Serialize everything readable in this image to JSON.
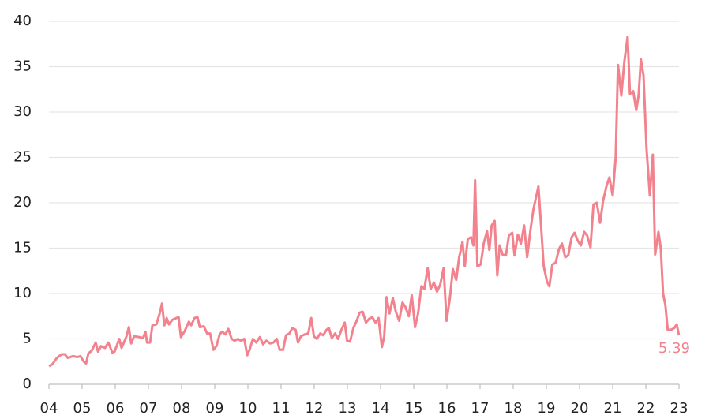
{
  "chart_data": {
    "type": "line",
    "xlim": [
      2004,
      2023
    ],
    "xticks": [
      {
        "value": 2004,
        "label": "04"
      },
      {
        "value": 2005,
        "label": "05"
      },
      {
        "value": 2006,
        "label": "06"
      },
      {
        "value": 2007,
        "label": "07"
      },
      {
        "value": 2008,
        "label": "08"
      },
      {
        "value": 2009,
        "label": "09"
      },
      {
        "value": 2010,
        "label": "10"
      },
      {
        "value": 2011,
        "label": "11"
      },
      {
        "value": 2012,
        "label": "12"
      },
      {
        "value": 2013,
        "label": "13"
      },
      {
        "value": 2014,
        "label": "14"
      },
      {
        "value": 2015,
        "label": "15"
      },
      {
        "value": 2016,
        "label": "16"
      },
      {
        "value": 2017,
        "label": "17"
      },
      {
        "value": 2018,
        "label": "18"
      },
      {
        "value": 2019,
        "label": "19"
      },
      {
        "value": 2020,
        "label": "20"
      },
      {
        "value": 2021,
        "label": "21"
      },
      {
        "value": 2022,
        "label": "22"
      },
      {
        "value": 2023,
        "label": "23"
      }
    ],
    "ylim": [
      0,
      40
    ],
    "yticks": [
      0,
      5,
      10,
      15,
      20,
      25,
      30,
      35,
      40
    ],
    "grid": true,
    "series": [
      {
        "color": "#f2838e",
        "x": [
          2004.0,
          2004.1,
          2004.24,
          2004.38,
          2004.48,
          2004.57,
          2004.72,
          2004.86,
          2004.95,
          2005.05,
          2005.12,
          2005.19,
          2005.29,
          2005.41,
          2005.48,
          2005.57,
          2005.69,
          2005.79,
          2005.91,
          2005.98,
          2006.12,
          2006.19,
          2006.34,
          2006.41,
          2006.48,
          2006.57,
          2006.72,
          2006.84,
          2006.91,
          2006.96,
          2007.05,
          2007.12,
          2007.24,
          2007.34,
          2007.41,
          2007.48,
          2007.55,
          2007.62,
          2007.72,
          2007.91,
          2007.98,
          2008.1,
          2008.22,
          2008.29,
          2008.39,
          2008.48,
          2008.55,
          2008.67,
          2008.77,
          2008.86,
          2008.96,
          2009.05,
          2009.15,
          2009.22,
          2009.32,
          2009.41,
          2009.51,
          2009.6,
          2009.7,
          2009.79,
          2009.89,
          2009.98,
          2010.05,
          2010.15,
          2010.25,
          2010.36,
          2010.46,
          2010.56,
          2010.67,
          2010.77,
          2010.87,
          2010.96,
          2011.06,
          2011.15,
          2011.25,
          2011.34,
          2011.44,
          2011.51,
          2011.6,
          2011.72,
          2011.82,
          2011.91,
          2011.99,
          2012.08,
          2012.18,
          2012.27,
          2012.37,
          2012.44,
          2012.53,
          2012.63,
          2012.72,
          2012.82,
          2012.92,
          2012.99,
          2013.08,
          2013.18,
          2013.27,
          2013.37,
          2013.46,
          2013.56,
          2013.65,
          2013.75,
          2013.85,
          2013.94,
          2014.04,
          2014.11,
          2014.18,
          2014.27,
          2014.37,
          2014.46,
          2014.56,
          2014.66,
          2014.75,
          2014.85,
          2014.94,
          2015.04,
          2015.13,
          2015.23,
          2015.32,
          2015.42,
          2015.51,
          2015.61,
          2015.7,
          2015.8,
          2015.9,
          2015.99,
          2016.09,
          2016.18,
          2016.28,
          2016.37,
          2016.47,
          2016.54,
          2016.63,
          2016.73,
          2016.8,
          2016.85,
          2016.92,
          2017.02,
          2017.11,
          2017.21,
          2017.28,
          2017.35,
          2017.44,
          2017.52,
          2017.59,
          2017.68,
          2017.78,
          2017.87,
          2017.97,
          2018.04,
          2018.14,
          2018.23,
          2018.33,
          2018.42,
          2018.52,
          2018.61,
          2018.76,
          2018.83,
          2018.92,
          2019.02,
          2019.09,
          2019.18,
          2019.28,
          2019.38,
          2019.47,
          2019.57,
          2019.66,
          2019.76,
          2019.85,
          2019.95,
          2020.04,
          2020.14,
          2020.23,
          2020.33,
          2020.42,
          2020.52,
          2020.62,
          2020.71,
          2020.81,
          2020.9,
          2021.0,
          2021.09,
          2021.16,
          2021.26,
          2021.35,
          2021.45,
          2021.52,
          2021.62,
          2021.71,
          2021.78,
          2021.85,
          2021.93,
          2022.02,
          2022.12,
          2022.21,
          2022.28,
          2022.38,
          2022.45,
          2022.52,
          2022.59,
          2022.66,
          2022.76,
          2022.86,
          2022.93,
          2023.0
        ],
        "values": [
          2.0,
          2.2,
          2.9,
          3.3,
          3.3,
          2.9,
          3.1,
          3.0,
          3.1,
          2.5,
          2.3,
          3.4,
          3.7,
          4.6,
          3.6,
          4.2,
          4.0,
          4.6,
          3.5,
          3.6,
          5.0,
          4.0,
          5.3,
          6.3,
          4.5,
          5.3,
          5.2,
          5.1,
          5.8,
          4.6,
          4.6,
          6.5,
          6.6,
          7.8,
          8.9,
          6.5,
          7.3,
          6.6,
          7.1,
          7.4,
          5.2,
          5.9,
          6.9,
          6.5,
          7.3,
          7.4,
          6.3,
          6.4,
          5.6,
          5.6,
          3.8,
          4.2,
          5.5,
          5.8,
          5.5,
          6.1,
          5.0,
          4.8,
          5.0,
          4.8,
          5.0,
          3.2,
          3.8,
          5.0,
          4.6,
          5.2,
          4.4,
          4.8,
          4.5,
          4.6,
          5.0,
          3.8,
          3.8,
          5.4,
          5.6,
          6.2,
          6.0,
          4.6,
          5.3,
          5.5,
          5.6,
          7.3,
          5.3,
          5.0,
          5.6,
          5.4,
          6.0,
          6.2,
          5.1,
          5.6,
          5.0,
          6.0,
          6.8,
          4.8,
          4.7,
          6.2,
          6.9,
          7.9,
          8.0,
          6.8,
          7.2,
          7.4,
          6.8,
          7.3,
          4.1,
          5.3,
          9.6,
          7.8,
          9.5,
          8.0,
          7.0,
          9.0,
          8.5,
          7.5,
          9.8,
          6.3,
          7.8,
          10.8,
          10.5,
          12.8,
          10.5,
          11.2,
          10.2,
          11.0,
          12.8,
          7.0,
          9.5,
          12.7,
          11.5,
          14.0,
          15.7,
          13.0,
          16.0,
          16.2,
          15.3,
          22.5,
          13.0,
          13.2,
          15.5,
          16.9,
          14.8,
          17.5,
          18.0,
          12.0,
          15.3,
          14.3,
          14.2,
          16.4,
          16.7,
          14.2,
          16.5,
          15.5,
          17.5,
          14.0,
          17.0,
          19.3,
          21.8,
          18.0,
          13.0,
          11.3,
          10.8,
          13.2,
          13.4,
          14.9,
          15.5,
          14.0,
          14.2,
          16.2,
          16.7,
          15.8,
          15.3,
          16.8,
          16.4,
          15.1,
          19.8,
          20.0,
          17.8,
          20.2,
          21.8,
          22.8,
          20.8,
          25.0,
          35.2,
          31.8,
          35.5,
          38.3,
          32.0,
          32.3,
          30.2,
          31.8,
          35.8,
          34.0,
          26.0,
          20.8,
          25.3,
          14.3,
          16.8,
          15.0,
          10.0,
          8.7,
          6.0,
          6.0,
          6.2,
          6.6,
          5.39
        ]
      }
    ]
  }
}
